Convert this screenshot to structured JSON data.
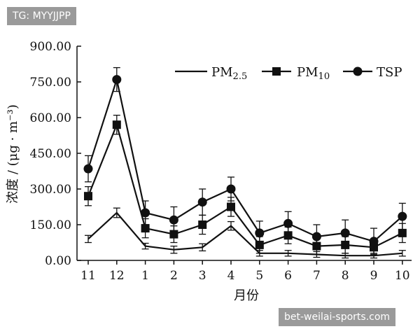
{
  "watermarks": {
    "top_left": "TG: MYYJJPP",
    "bottom_right": "bet-weilai-sports.com"
  },
  "chart_data": {
    "type": "line",
    "title": "",
    "xlabel": "月份",
    "ylabel": "浓度 / (μg · m⁻³)",
    "categories": [
      "11",
      "12",
      "1",
      "2",
      "3",
      "4",
      "5",
      "6",
      "7",
      "8",
      "9",
      "10"
    ],
    "yticks": [
      "0.00",
      "150.00",
      "300.00",
      "450.00",
      "600.00",
      "750.00",
      "900.00"
    ],
    "ylim": [
      0,
      900
    ],
    "legend_position": "top-right",
    "grid": false,
    "series": [
      {
        "name": "PM2.5",
        "name_base": "PM",
        "name_sub": "2.5",
        "marker": "none",
        "values": [
          90,
          200,
          60,
          45,
          55,
          145,
          30,
          30,
          25,
          20,
          20,
          30
        ],
        "errors": [
          15,
          20,
          12,
          15,
          15,
          18,
          12,
          12,
          12,
          10,
          10,
          12
        ]
      },
      {
        "name": "PM10",
        "name_base": "PM",
        "name_sub": "10",
        "marker": "square",
        "values": [
          270,
          570,
          135,
          110,
          150,
          225,
          65,
          105,
          60,
          65,
          55,
          115
        ],
        "errors": [
          40,
          40,
          40,
          35,
          40,
          40,
          35,
          35,
          35,
          35,
          30,
          40
        ]
      },
      {
        "name": "TSP",
        "name_base": "TSP",
        "name_sub": "",
        "marker": "circle",
        "values": [
          385,
          760,
          200,
          170,
          245,
          300,
          115,
          155,
          100,
          115,
          80,
          185
        ],
        "errors": [
          55,
          50,
          50,
          55,
          55,
          50,
          50,
          50,
          50,
          55,
          55,
          55
        ]
      }
    ]
  }
}
